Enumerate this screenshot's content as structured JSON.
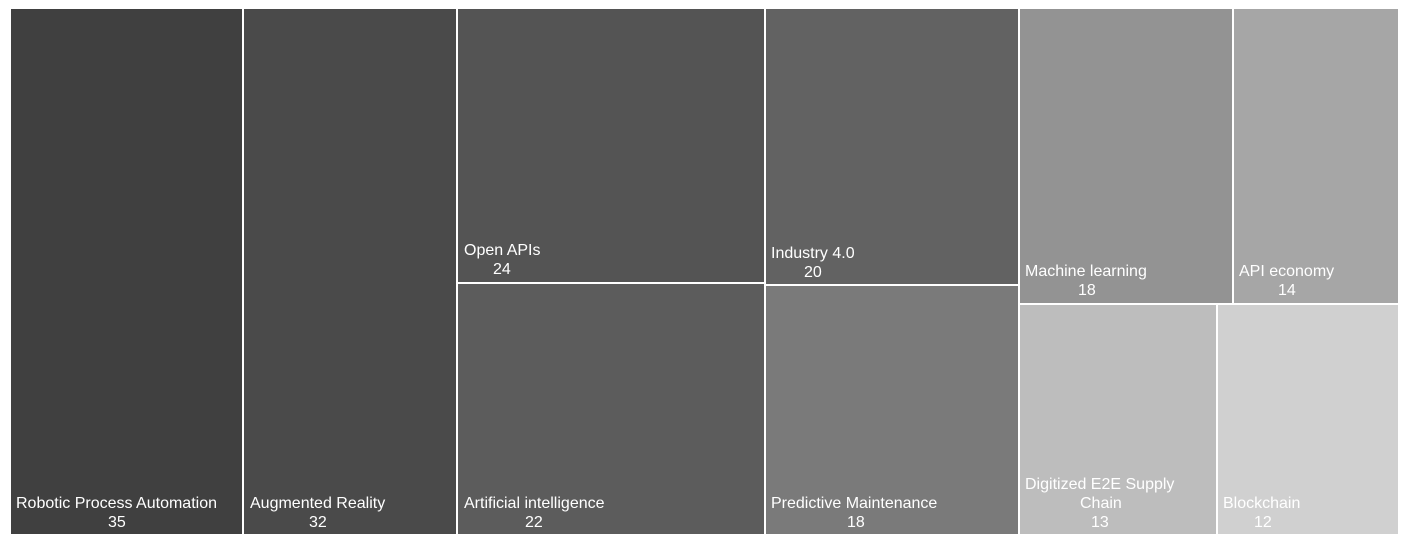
{
  "chart_data": {
    "type": "treemap",
    "items": [
      {
        "label": "Robotic Process Automation",
        "value": 35,
        "color": "#404040"
      },
      {
        "label": "Augmented Reality",
        "value": 32,
        "color": "#4a4a4a"
      },
      {
        "label": "Open APIs",
        "value": 24,
        "color": "#545454"
      },
      {
        "label": "Artificial intelligence",
        "value": 22,
        "color": "#5c5c5c"
      },
      {
        "label": "Industry 4.0",
        "value": 20,
        "color": "#626262"
      },
      {
        "label": "Predictive Maintenance",
        "value": 18,
        "color": "#7a7a7a"
      },
      {
        "label": "Machine learning",
        "value": 18,
        "color": "#939393"
      },
      {
        "label": "API economy",
        "value": 14,
        "color": "#a6a6a6"
      },
      {
        "label": "Digitized E2E Supply Chain",
        "value": 13,
        "color": "#bdbdbd"
      },
      {
        "label": "Blockchain",
        "value": 12,
        "color": "#d0d0d0"
      }
    ]
  }
}
